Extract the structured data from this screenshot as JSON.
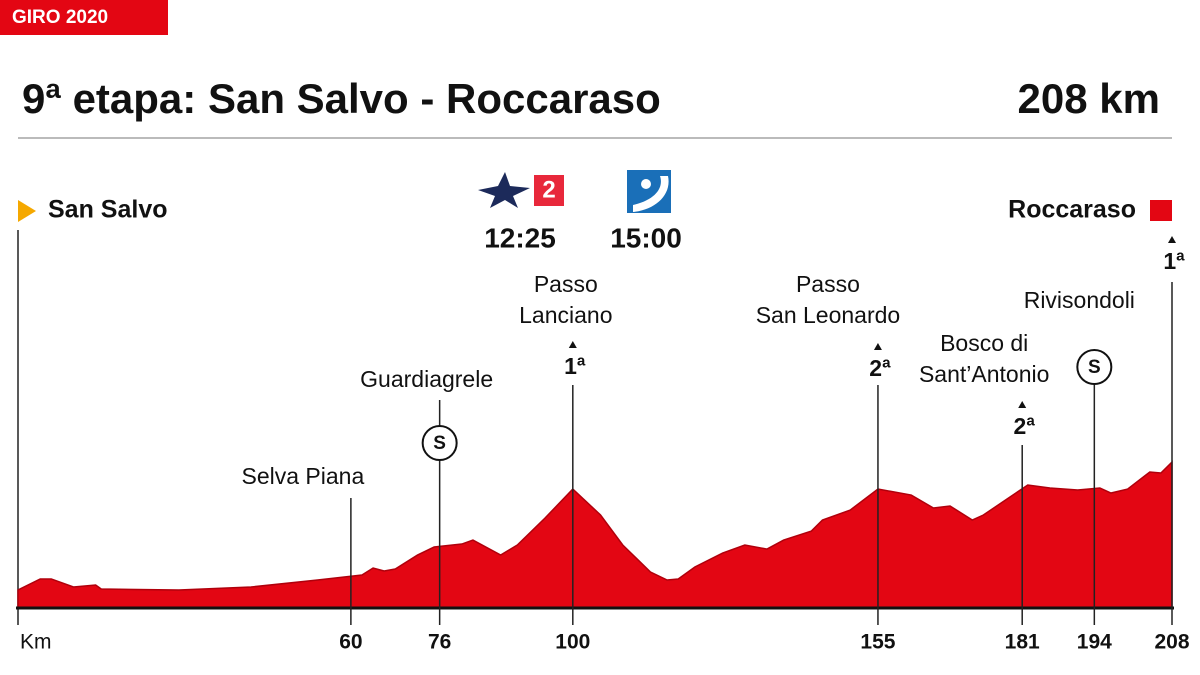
{
  "chart_data": {
    "type": "area",
    "badge": "GIRO 2020",
    "title": "9ª etapa: San Salvo - Roccaraso",
    "distance": "208 km",
    "start": "San Salvo",
    "finish": "Roccaraso",
    "broadcasts": [
      {
        "channel": "2",
        "time": "12:25"
      },
      {
        "time": "15:00"
      }
    ],
    "x_label": "Km",
    "xlim": [
      0,
      208
    ],
    "ylim": [
      0,
      1700
    ],
    "xticks": [
      60,
      76,
      100,
      155,
      181,
      194,
      208
    ],
    "x": [
      0,
      4,
      6,
      10,
      14,
      15,
      29,
      42,
      54,
      62,
      64,
      66,
      68,
      72,
      75,
      80,
      82,
      87,
      90,
      95,
      100,
      105,
      109,
      114,
      117,
      119,
      122,
      127,
      131,
      135,
      138,
      143,
      145,
      150,
      155,
      161,
      165,
      168,
      172,
      174,
      178,
      182,
      186,
      191,
      195,
      197,
      200,
      204,
      206,
      208
    ],
    "series": [
      {
        "color": "#e30613",
        "values": [
          204,
          329,
          329,
          238,
          261,
          215,
          204,
          238,
          317,
          374,
          453,
          419,
          442,
          600,
          691,
          725,
          770,
          600,
          714,
          1020,
          1348,
          1054,
          714,
          408,
          317,
          329,
          465,
          623,
          714,
          668,
          770,
          872,
          997,
          1110,
          1348,
          1280,
          1133,
          1156,
          997,
          1054,
          1224,
          1394,
          1360,
          1337,
          1360,
          1303,
          1348,
          1541,
          1530,
          1654
        ]
      }
    ],
    "pois": [
      {
        "km": 60,
        "label": [
          "Selva Piana"
        ]
      },
      {
        "km": 76,
        "label": [
          "Guardiagrele"
        ],
        "sprint": "S"
      },
      {
        "km": 100,
        "label": [
          "Passo",
          "Lanciano"
        ],
        "climb": "1ª"
      },
      {
        "km": 155,
        "label": [
          "Passo",
          "San Leonardo"
        ],
        "climb": "2ª"
      },
      {
        "km": 181,
        "label": [
          "Bosco di",
          "Sant’Antonio"
        ],
        "climb": "2ª"
      },
      {
        "km": 194,
        "label": [
          "Rivisondoli"
        ],
        "sprint": "S"
      },
      {
        "km": 208,
        "climb": "1ª"
      }
    ]
  }
}
